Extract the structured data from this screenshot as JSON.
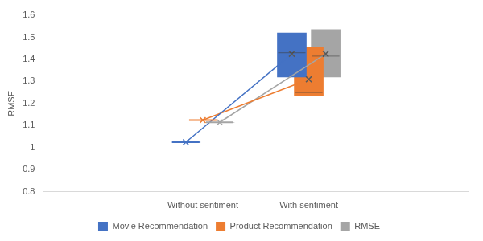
{
  "chart_data": {
    "type": "box",
    "categories": [
      "Without sentiment",
      "With sentiment"
    ],
    "y_label": "RMSE",
    "series": [
      {
        "name": "Movie Recommendation",
        "color": "#4472c4",
        "values": [
          1.025,
          1.425
        ],
        "q1": [
          1.025,
          1.32
        ],
        "median": [
          1.025,
          1.43
        ],
        "q3": [
          1.025,
          1.52
        ]
      },
      {
        "name": "Product Recommendation",
        "color": "#ed7d31",
        "values": [
          1.125,
          1.31
        ],
        "q1": [
          1.125,
          1.235
        ],
        "median": [
          1.125,
          1.25
        ],
        "q3": [
          1.125,
          1.455
        ]
      },
      {
        "name": "RMSE",
        "color": "#a5a5a5",
        "values": [
          1.115,
          1.425
        ],
        "q1": [
          1.115,
          1.32
        ],
        "median": [
          1.115,
          1.415
        ],
        "q3": [
          1.115,
          1.535
        ]
      }
    ],
    "ylim": [
      0.8,
      1.6
    ],
    "yticks": [
      0.8,
      0.9,
      1,
      1.1,
      1.2,
      1.3,
      1.4,
      1.5,
      1.6
    ],
    "grid": false,
    "legend": "bottom",
    "marker": "x"
  }
}
